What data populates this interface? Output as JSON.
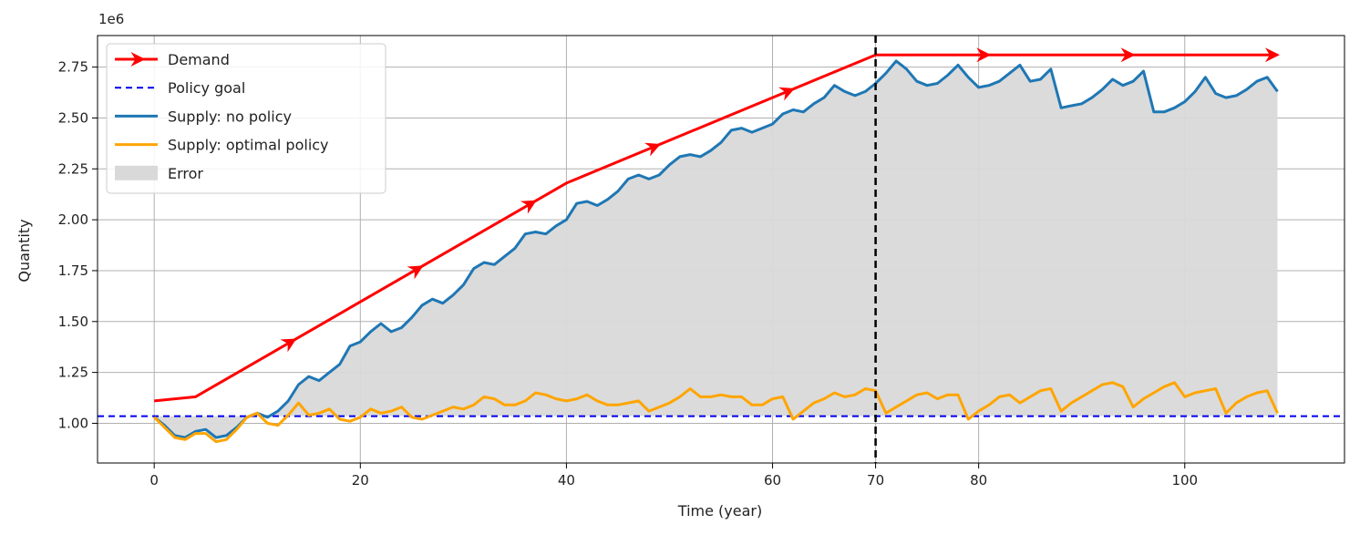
{
  "chart_data": {
    "type": "line",
    "title": "",
    "xlabel": "Time (year)",
    "ylabel": "Quantity",
    "y_offset_label": "1e6",
    "y_scale_factor": 1000000,
    "xlim": [
      -5.5,
      115.5
    ],
    "ylim": [
      0.805,
      2.905
    ],
    "xticks": [
      0,
      20,
      40,
      60,
      70,
      80,
      100
    ],
    "xtick_labels": [
      "0",
      "20",
      "40",
      "60",
      "70",
      "80",
      "100"
    ],
    "yticks": [
      1.0,
      1.25,
      1.5,
      1.75,
      2.0,
      2.25,
      2.5,
      2.75
    ],
    "ytick_labels": [
      "1.00",
      "1.25",
      "1.50",
      "1.75",
      "2.00",
      "2.25",
      "2.50",
      "2.75"
    ],
    "grid": true,
    "legend_position": "top-left",
    "legend": [
      "Demand",
      "Policy goal",
      "Supply: no policy",
      "Supply: optimal policy",
      "Error"
    ],
    "vertical_line_x": 70,
    "series": [
      {
        "name": "Demand",
        "color": "#ff0000",
        "style": "solid-with-arrow-markers",
        "arrow_x": [
          13.2,
          25.5,
          36.5,
          48.5,
          61.5,
          80.5,
          94.5,
          108.5
        ],
        "x": [
          0,
          4,
          40,
          70,
          109
        ],
        "y": [
          1.11,
          1.13,
          2.18,
          2.81,
          2.81
        ]
      },
      {
        "name": "Policy goal",
        "color": "#0000ee",
        "style": "dashed",
        "x": [
          -5.5,
          115.5
        ],
        "y": [
          1.035,
          1.035
        ]
      },
      {
        "name": "Supply: no policy",
        "color": "#1f77b4",
        "style": "solid",
        "x": [
          0,
          1,
          2,
          3,
          4,
          5,
          6,
          7,
          8,
          9,
          10,
          11,
          12,
          13,
          14,
          15,
          16,
          17,
          18,
          19,
          20,
          21,
          22,
          23,
          24,
          25,
          26,
          27,
          28,
          29,
          30,
          31,
          32,
          33,
          34,
          35,
          36,
          37,
          38,
          39,
          40,
          41,
          42,
          43,
          44,
          45,
          46,
          47,
          48,
          49,
          50,
          51,
          52,
          53,
          54,
          55,
          56,
          57,
          58,
          59,
          60,
          61,
          62,
          63,
          64,
          65,
          66,
          67,
          68,
          69,
          70,
          71,
          72,
          73,
          74,
          75,
          76,
          77,
          78,
          79,
          80,
          81,
          82,
          83,
          84,
          85,
          86,
          87,
          88,
          89,
          90,
          91,
          92,
          93,
          94,
          95,
          96,
          97,
          98,
          99,
          100,
          101,
          102,
          103,
          104,
          105,
          106,
          107,
          108,
          109
        ],
        "y": [
          1.03,
          0.99,
          0.94,
          0.93,
          0.96,
          0.97,
          0.93,
          0.94,
          0.98,
          1.03,
          1.05,
          1.03,
          1.06,
          1.11,
          1.19,
          1.23,
          1.21,
          1.25,
          1.29,
          1.38,
          1.4,
          1.45,
          1.49,
          1.45,
          1.47,
          1.52,
          1.58,
          1.61,
          1.59,
          1.63,
          1.68,
          1.76,
          1.79,
          1.78,
          1.82,
          1.86,
          1.93,
          1.94,
          1.93,
          1.97,
          2.0,
          2.08,
          2.09,
          2.07,
          2.1,
          2.14,
          2.2,
          2.22,
          2.2,
          2.22,
          2.27,
          2.31,
          2.32,
          2.31,
          2.34,
          2.38,
          2.44,
          2.45,
          2.43,
          2.45,
          2.47,
          2.52,
          2.54,
          2.53,
          2.57,
          2.6,
          2.66,
          2.63,
          2.61,
          2.63,
          2.67,
          2.72,
          2.78,
          2.74,
          2.68,
          2.66,
          2.67,
          2.71,
          2.76,
          2.7,
          2.65,
          2.66,
          2.68,
          2.72,
          2.76,
          2.68,
          2.69,
          2.74,
          2.55,
          2.56,
          2.57,
          2.6,
          2.64,
          2.69,
          2.66,
          2.68,
          2.73,
          2.53,
          2.53,
          2.55,
          2.58,
          2.63,
          2.7,
          2.62,
          2.6,
          2.61,
          2.64,
          2.68,
          2.7,
          2.63
        ]
      },
      {
        "name": "Supply: optimal policy",
        "color": "#ffa500",
        "style": "solid",
        "x": [
          0,
          1,
          2,
          3,
          4,
          5,
          6,
          7,
          8,
          9,
          10,
          11,
          12,
          13,
          14,
          15,
          16,
          17,
          18,
          19,
          20,
          21,
          22,
          23,
          24,
          25,
          26,
          27,
          28,
          29,
          30,
          31,
          32,
          33,
          34,
          35,
          36,
          37,
          38,
          39,
          40,
          41,
          42,
          43,
          44,
          45,
          46,
          47,
          48,
          49,
          50,
          51,
          52,
          53,
          54,
          55,
          56,
          57,
          58,
          59,
          60,
          61,
          62,
          63,
          64,
          65,
          66,
          67,
          68,
          69,
          70,
          71,
          72,
          73,
          74,
          75,
          76,
          77,
          78,
          79,
          80,
          81,
          82,
          83,
          84,
          85,
          86,
          87,
          88,
          89,
          90,
          91,
          92,
          93,
          94,
          95,
          96,
          97,
          98,
          99,
          100,
          101,
          102,
          103,
          104,
          105,
          106,
          107,
          108,
          109
        ],
        "y": [
          1.03,
          0.98,
          0.93,
          0.92,
          0.95,
          0.95,
          0.91,
          0.92,
          0.97,
          1.03,
          1.05,
          1.0,
          0.99,
          1.04,
          1.1,
          1.04,
          1.05,
          1.07,
          1.02,
          1.01,
          1.03,
          1.07,
          1.05,
          1.06,
          1.08,
          1.03,
          1.02,
          1.04,
          1.06,
          1.08,
          1.07,
          1.09,
          1.13,
          1.12,
          1.09,
          1.09,
          1.11,
          1.15,
          1.14,
          1.12,
          1.11,
          1.12,
          1.14,
          1.11,
          1.09,
          1.09,
          1.1,
          1.11,
          1.06,
          1.08,
          1.1,
          1.13,
          1.17,
          1.13,
          1.13,
          1.14,
          1.13,
          1.13,
          1.09,
          1.09,
          1.12,
          1.13,
          1.02,
          1.06,
          1.1,
          1.12,
          1.15,
          1.13,
          1.14,
          1.17,
          1.16,
          1.05,
          1.08,
          1.11,
          1.14,
          1.15,
          1.12,
          1.14,
          1.14,
          1.02,
          1.06,
          1.09,
          1.13,
          1.14,
          1.1,
          1.13,
          1.16,
          1.17,
          1.06,
          1.1,
          1.13,
          1.16,
          1.19,
          1.2,
          1.18,
          1.08,
          1.12,
          1.15,
          1.18,
          1.2,
          1.13,
          1.15,
          1.16,
          1.17,
          1.05,
          1.1,
          1.13,
          1.15,
          1.16,
          1.05
        ]
      }
    ],
    "fill_between": {
      "name": "Error",
      "color": "#d9d9d9",
      "upper_series": "Supply: no policy",
      "lower_series": "Policy goal"
    }
  }
}
